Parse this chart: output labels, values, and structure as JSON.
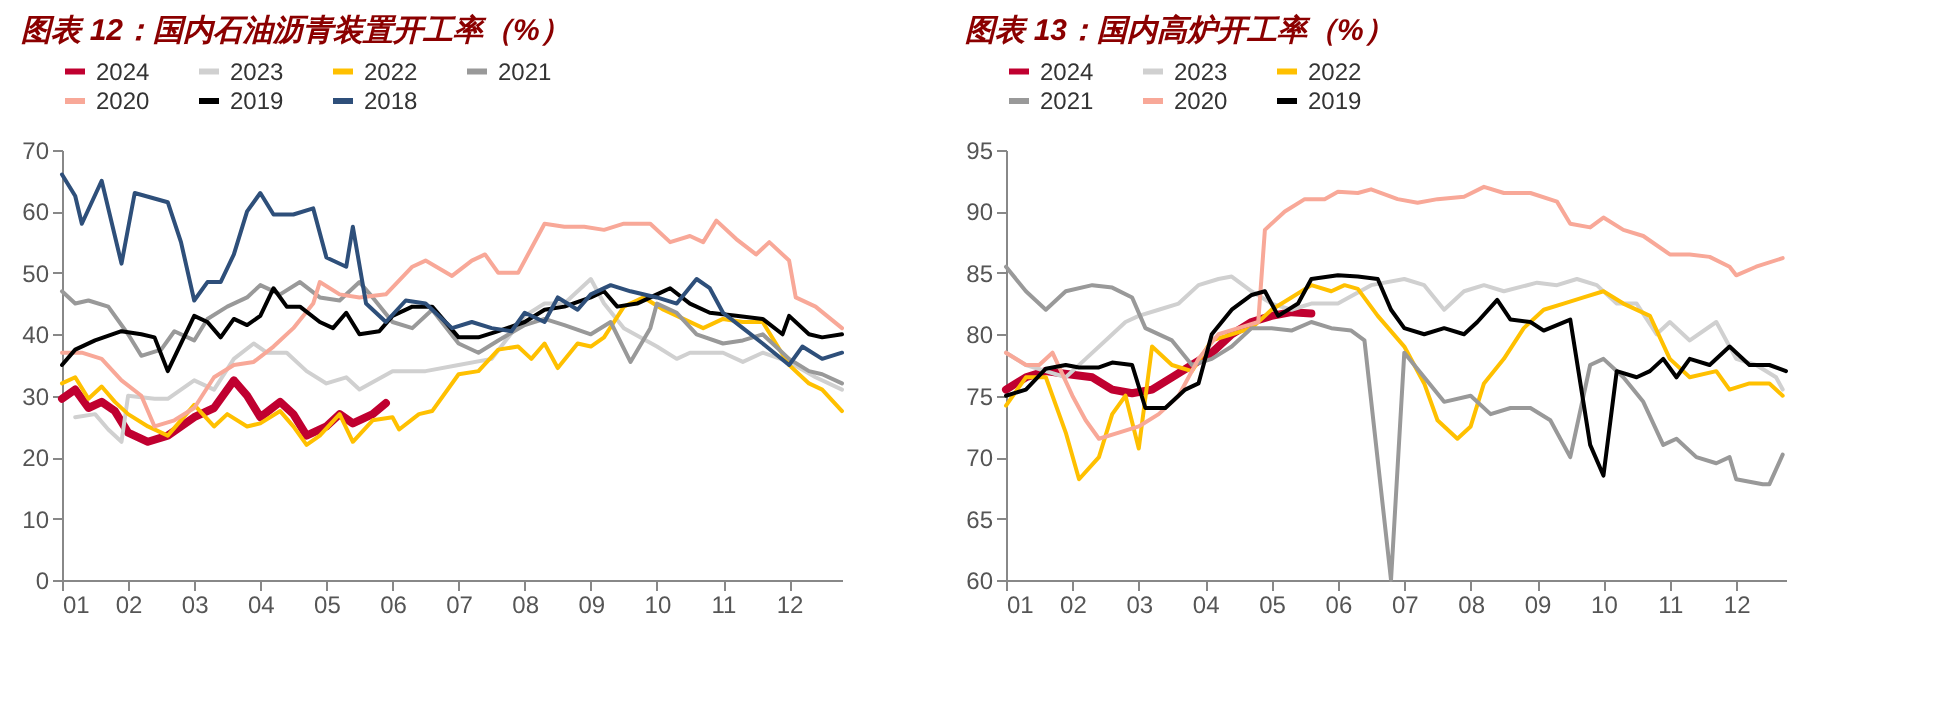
{
  "chart_data": [
    {
      "type": "line",
      "title": "图表 12：国内石油沥青装置开工率（%）",
      "legend": "top",
      "grid": false,
      "xlim": [
        1,
        12.8
      ],
      "xticks": [
        {
          "value": 1,
          "label": "01"
        },
        {
          "value": 2,
          "label": "02"
        },
        {
          "value": 3,
          "label": "03"
        },
        {
          "value": 4,
          "label": "04"
        },
        {
          "value": 5,
          "label": "05"
        },
        {
          "value": 6,
          "label": "06"
        },
        {
          "value": 7,
          "label": "07"
        },
        {
          "value": 8,
          "label": "08"
        },
        {
          "value": 9,
          "label": "09"
        },
        {
          "value": 10,
          "label": "10"
        },
        {
          "value": 11,
          "label": "11"
        },
        {
          "value": 12,
          "label": "12"
        }
      ],
      "ylim": [
        0,
        70
      ],
      "yticks": [
        0,
        10,
        20,
        30,
        40,
        50,
        60,
        70
      ],
      "series": [
        {
          "name": "2024",
          "color": "#c00030",
          "x": [
            1.0,
            1.2,
            1.4,
            1.6,
            1.8,
            2.0,
            2.3,
            2.6,
            3.0,
            3.3,
            3.6,
            3.8,
            4.0,
            4.3,
            4.5,
            4.7,
            5.0,
            5.2,
            5.4,
            5.7,
            5.9
          ],
          "values": [
            29.5,
            31,
            28,
            29,
            27.5,
            24,
            22.5,
            23.5,
            26.5,
            28,
            32.5,
            30,
            26.5,
            29,
            27,
            23.5,
            25,
            27,
            25.5,
            27,
            28.8
          ]
        },
        {
          "name": "2023",
          "color": "#d0d0d0",
          "x": [
            1.2,
            1.5,
            1.7,
            1.9,
            2.0,
            2.4,
            2.6,
            3.0,
            3.3,
            3.6,
            3.9,
            4.1,
            4.4,
            4.7,
            5.0,
            5.3,
            5.5,
            6.0,
            6.5,
            7.0,
            7.5,
            8.0,
            8.3,
            8.6,
            9.0,
            9.2,
            9.5,
            10.0,
            10.3,
            10.5,
            11.0,
            11.3,
            11.6,
            12.0,
            12.4,
            12.8
          ],
          "values": [
            26.5,
            27,
            24.5,
            22.5,
            30,
            29.5,
            29.5,
            32.5,
            31,
            36,
            38.5,
            37,
            37,
            34,
            32,
            33,
            31,
            34,
            34,
            35,
            36,
            43,
            45,
            45,
            49,
            45,
            41,
            38,
            36,
            37,
            37,
            35.5,
            37,
            35.5,
            33,
            31
          ]
        },
        {
          "name": "2022",
          "color": "#ffc000",
          "x": [
            1.0,
            1.2,
            1.4,
            1.6,
            1.8,
            2.0,
            2.3,
            2.6,
            3.0,
            3.3,
            3.5,
            3.8,
            4.0,
            4.3,
            4.5,
            4.7,
            4.9,
            5.2,
            5.4,
            5.7,
            6.0,
            6.1,
            6.4,
            6.6,
            7.0,
            7.3,
            7.6,
            7.9,
            8.1,
            8.3,
            8.5,
            8.8,
            9.0,
            9.2,
            9.5,
            9.8,
            10.1,
            10.4,
            10.7,
            11.0,
            11.3,
            11.6,
            12.0,
            12.3,
            12.5,
            12.8
          ],
          "values": [
            32,
            33,
            29.5,
            31.5,
            29,
            27,
            25,
            23.5,
            28.5,
            25,
            27,
            25,
            25.5,
            27.5,
            25,
            22,
            23.5,
            27,
            22.5,
            26,
            26.5,
            24.5,
            27,
            27.5,
            33.5,
            34,
            37.5,
            38,
            36,
            38.5,
            34.5,
            38.5,
            38,
            39.5,
            44.5,
            46,
            44,
            42.5,
            41,
            42.5,
            42,
            42,
            35,
            32,
            31,
            27.5
          ]
        },
        {
          "name": "2021",
          "color": "#999999",
          "x": [
            1.0,
            1.2,
            1.4,
            1.7,
            2.0,
            2.2,
            2.5,
            2.7,
            3.0,
            3.2,
            3.5,
            3.8,
            4.0,
            4.3,
            4.6,
            4.9,
            5.2,
            5.5,
            5.7,
            6.0,
            6.3,
            6.6,
            7.0,
            7.3,
            7.6,
            8.0,
            8.3,
            8.6,
            9.0,
            9.3,
            9.6,
            9.9,
            10.0,
            10.3,
            10.6,
            11.0,
            11.3,
            11.6,
            12.0,
            12.3,
            12.5,
            12.8
          ],
          "values": [
            47,
            45,
            45.5,
            44.5,
            40,
            36.5,
            37.5,
            40.5,
            39,
            42.5,
            44.5,
            46,
            48,
            46.5,
            48.5,
            46,
            45.5,
            48.5,
            46,
            42,
            41,
            44,
            38.5,
            37,
            39,
            41.5,
            42.5,
            41.5,
            40,
            42,
            35.5,
            41,
            45,
            43.5,
            40,
            38.5,
            39,
            40,
            36,
            34,
            33.5,
            32
          ]
        },
        {
          "name": "2020",
          "color": "#f8a898",
          "x": [
            1.0,
            1.3,
            1.6,
            1.9,
            2.2,
            2.4,
            2.7,
            3.0,
            3.3,
            3.6,
            3.9,
            4.2,
            4.5,
            4.8,
            4.9,
            5.2,
            5.5,
            5.9,
            6.3,
            6.5,
            6.9,
            7.2,
            7.4,
            7.6,
            7.9,
            8.3,
            8.6,
            8.9,
            9.2,
            9.5,
            9.9,
            10.2,
            10.5,
            10.7,
            10.9,
            11.2,
            11.5,
            11.7,
            12.0,
            12.1,
            12.4,
            12.8
          ],
          "values": [
            37,
            37,
            36,
            32.5,
            30,
            25,
            26,
            28,
            33,
            35,
            35.5,
            38,
            41,
            45,
            48.5,
            46.5,
            46,
            46.5,
            51,
            52,
            49.5,
            52,
            53,
            50,
            50,
            58,
            57.5,
            57.5,
            57,
            58,
            58,
            55,
            56,
            55,
            58.5,
            55.5,
            53,
            55,
            52,
            46,
            44.5,
            41
          ]
        },
        {
          "name": "2019",
          "color": "#000000",
          "x": [
            1.0,
            1.2,
            1.5,
            1.9,
            2.2,
            2.4,
            2.6,
            3.0,
            3.2,
            3.4,
            3.6,
            3.8,
            4.0,
            4.2,
            4.4,
            4.6,
            4.9,
            5.1,
            5.3,
            5.5,
            5.8,
            6.0,
            6.3,
            6.6,
            7.0,
            7.3,
            7.6,
            8.0,
            8.3,
            8.6,
            9.0,
            9.2,
            9.4,
            9.7,
            10.0,
            10.2,
            10.5,
            10.8,
            11.2,
            11.6,
            11.9,
            12.0,
            12.3,
            12.5,
            12.8
          ],
          "values": [
            35,
            37.5,
            39,
            40.5,
            40,
            39.5,
            34,
            43,
            42,
            39.5,
            42.5,
            41.5,
            43,
            47.5,
            44.5,
            44.5,
            42,
            41,
            43.5,
            40,
            40.5,
            43,
            44.5,
            44.5,
            39.5,
            39.5,
            40.5,
            42,
            44,
            44.5,
            46,
            47,
            44.5,
            45,
            46.5,
            47.5,
            45,
            43.5,
            43,
            42.5,
            40,
            43,
            40,
            39.5,
            40
          ]
        },
        {
          "name": "2018",
          "color": "#2e4f7a",
          "x": [
            1.0,
            1.2,
            1.3,
            1.6,
            1.9,
            2.1,
            2.6,
            2.8,
            3.0,
            3.2,
            3.4,
            3.6,
            3.8,
            4.0,
            4.2,
            4.5,
            4.8,
            5.0,
            5.3,
            5.4,
            5.6,
            5.9,
            6.2,
            6.5,
            6.9,
            7.2,
            7.5,
            7.8,
            8.0,
            8.3,
            8.5,
            8.8,
            9.0,
            9.3,
            9.6,
            10.0,
            10.3,
            10.6,
            10.8,
            11.0,
            11.3,
            11.6,
            12.0,
            12.2,
            12.5,
            12.8
          ],
          "values": [
            66,
            62.5,
            58,
            65,
            51.5,
            63,
            61.5,
            55,
            45.5,
            48.5,
            48.5,
            53,
            60,
            63,
            59.5,
            59.5,
            60.5,
            52.5,
            51,
            57.5,
            45,
            42,
            45.5,
            45,
            41,
            42,
            41,
            40.5,
            43.5,
            42,
            46,
            44,
            46.5,
            48,
            47,
            46,
            45,
            49,
            47.5,
            43.5,
            41,
            38.5,
            35,
            38,
            36,
            37
          ]
        }
      ]
    },
    {
      "type": "line",
      "title": "图表 13：国内高炉开工率（%）",
      "legend": "top",
      "grid": false,
      "xlim": [
        1,
        12.75
      ],
      "xticks": [
        {
          "value": 1,
          "label": "01"
        },
        {
          "value": 2,
          "label": "02"
        },
        {
          "value": 3,
          "label": "03"
        },
        {
          "value": 4,
          "label": "04"
        },
        {
          "value": 5,
          "label": "05"
        },
        {
          "value": 6,
          "label": "06"
        },
        {
          "value": 7,
          "label": "07"
        },
        {
          "value": 8,
          "label": "08"
        },
        {
          "value": 9,
          "label": "09"
        },
        {
          "value": 10,
          "label": "10"
        },
        {
          "value": 11,
          "label": "11"
        },
        {
          "value": 12,
          "label": "12"
        }
      ],
      "ylim": [
        60,
        95
      ],
      "yticks": [
        60,
        65,
        70,
        75,
        80,
        85,
        90,
        95
      ],
      "series": [
        {
          "name": "2024",
          "color": "#c00030",
          "x": [
            1.0,
            1.3,
            1.6,
            2.0,
            2.3,
            2.6,
            2.9,
            3.2,
            3.5,
            3.8,
            4.1,
            4.4,
            4.7,
            5.0,
            5.3,
            5.6
          ],
          "values": [
            75.5,
            76.5,
            77,
            76.7,
            76.5,
            75.5,
            75.2,
            75.5,
            76.5,
            77.5,
            78.5,
            80,
            81,
            81.5,
            81.8,
            81.7
          ]
        },
        {
          "name": "2023",
          "color": "#d0d0d0",
          "x": [
            1.0,
            1.3,
            1.6,
            1.9,
            2.2,
            2.5,
            2.8,
            3.0,
            3.3,
            3.6,
            3.9,
            4.2,
            4.4,
            4.7,
            5.0,
            5.3,
            5.6,
            6.0,
            6.5,
            7.0,
            7.3,
            7.6,
            7.9,
            8.2,
            8.5,
            9.0,
            9.3,
            9.6,
            9.9,
            10.2,
            10.5,
            10.8,
            11.0,
            11.3,
            11.7,
            12.0,
            12.3,
            12.6,
            12.7
          ],
          "values": [
            78.5,
            77.5,
            77,
            76.5,
            78,
            79.5,
            81,
            81.5,
            82,
            82.5,
            84,
            84.5,
            84.7,
            83.5,
            82.5,
            82,
            82.5,
            82.5,
            84,
            84.5,
            84,
            82,
            83.5,
            84,
            83.5,
            84.2,
            84,
            84.5,
            84,
            82.5,
            82.5,
            80,
            81,
            79.5,
            81,
            78,
            77.5,
            76.5,
            75.5
          ]
        },
        {
          "name": "2022",
          "color": "#ffc000",
          "x": [
            1.0,
            1.3,
            1.6,
            1.9,
            2.1,
            2.4,
            2.6,
            2.8,
            3.0,
            3.2,
            3.5,
            3.8,
            4.1,
            4.4,
            4.7,
            5.0,
            5.3,
            5.6,
            5.9,
            6.1,
            6.3,
            6.6,
            7.0,
            7.3,
            7.5,
            7.8,
            8.0,
            8.2,
            8.5,
            8.8,
            9.1,
            9.4,
            9.7,
            10.0,
            10.3,
            10.7,
            11.0,
            11.3,
            11.7,
            11.9,
            12.2,
            12.5,
            12.7
          ],
          "values": [
            74.2,
            76.5,
            76.5,
            72,
            68.2,
            70,
            73.5,
            75,
            70.7,
            79,
            77.5,
            77,
            79.5,
            80,
            80.5,
            82,
            83,
            84,
            83.5,
            84,
            83.7,
            81.5,
            79,
            76,
            73,
            71.5,
            72.5,
            76,
            78,
            80.5,
            82,
            82.5,
            83,
            83.5,
            82.5,
            81.5,
            78,
            76.5,
            77,
            75.5,
            76,
            76,
            75
          ]
        },
        {
          "name": "2021",
          "color": "#999999",
          "x": [
            1.0,
            1.3,
            1.6,
            1.9,
            2.3,
            2.6,
            2.9,
            3.1,
            3.5,
            3.8,
            4.1,
            4.4,
            4.7,
            5.0,
            5.3,
            5.6,
            5.9,
            6.2,
            6.4,
            6.8,
            7.0,
            7.3,
            7.6,
            8.0,
            8.3,
            8.6,
            8.9,
            9.2,
            9.5,
            9.8,
            10.0,
            10.3,
            10.6,
            10.9,
            11.1,
            11.4,
            11.7,
            11.9,
            12.0,
            12.4,
            12.5,
            12.7
          ],
          "values": [
            85.5,
            83.5,
            82,
            83.5,
            84,
            83.8,
            83,
            80.5,
            79.5,
            77.5,
            78,
            79,
            80.5,
            80.5,
            80.3,
            81,
            80.5,
            80.3,
            79.5,
            60,
            78.5,
            76.5,
            74.5,
            75,
            73.5,
            74,
            74,
            73,
            70,
            77.5,
            78,
            76.5,
            74.5,
            71,
            71.5,
            70,
            69.5,
            70,
            68.2,
            67.8,
            67.8,
            70.2
          ]
        },
        {
          "name": "2020",
          "color": "#f8a898",
          "x": [
            1.0,
            1.3,
            1.5,
            1.7,
            2.0,
            2.2,
            2.4,
            2.7,
            3.0,
            3.3,
            3.6,
            3.9,
            4.2,
            4.5,
            4.8,
            4.9,
            5.2,
            5.5,
            5.8,
            6.0,
            6.3,
            6.5,
            6.9,
            7.2,
            7.5,
            7.9,
            8.2,
            8.5,
            8.9,
            9.3,
            9.5,
            9.8,
            10.0,
            10.3,
            10.6,
            11.0,
            11.3,
            11.6,
            11.9,
            12.0,
            12.3,
            12.7
          ],
          "values": [
            78.5,
            77.5,
            77.5,
            78.5,
            75,
            73,
            71.5,
            72,
            72.5,
            73.5,
            75,
            78,
            80,
            80.5,
            81,
            88.5,
            90,
            91,
            91,
            91.6,
            91.5,
            91.8,
            91,
            90.7,
            91,
            91.2,
            92,
            91.5,
            91.5,
            90.8,
            89,
            88.7,
            89.5,
            88.5,
            88,
            86.5,
            86.5,
            86.3,
            85.5,
            84.8,
            85.5,
            86.2
          ]
        },
        {
          "name": "2019",
          "color": "#000000",
          "x": [
            1.0,
            1.3,
            1.6,
            1.9,
            2.1,
            2.4,
            2.6,
            2.9,
            3.1,
            3.4,
            3.7,
            3.9,
            4.1,
            4.4,
            4.7,
            4.9,
            5.1,
            5.4,
            5.6,
            6.0,
            6.3,
            6.6,
            6.8,
            7.0,
            7.3,
            7.6,
            7.9,
            8.1,
            8.4,
            8.6,
            8.9,
            9.1,
            9.5,
            9.8,
            10.0,
            10.2,
            10.5,
            10.7,
            10.9,
            11.1,
            11.3,
            11.6,
            11.9,
            12.2,
            12.5,
            12.75
          ],
          "values": [
            75,
            75.5,
            77.2,
            77.5,
            77.3,
            77.3,
            77.7,
            77.5,
            74,
            74,
            75.5,
            76,
            80,
            82,
            83.2,
            83.5,
            81.5,
            82.5,
            84.5,
            84.8,
            84.7,
            84.5,
            82,
            80.5,
            80,
            80.5,
            80,
            81,
            82.8,
            81.2,
            81,
            80.3,
            81.2,
            71,
            68.5,
            77,
            76.5,
            77,
            78,
            76.5,
            78,
            77.5,
            79,
            77.5,
            77.5,
            77
          ]
        }
      ]
    }
  ]
}
